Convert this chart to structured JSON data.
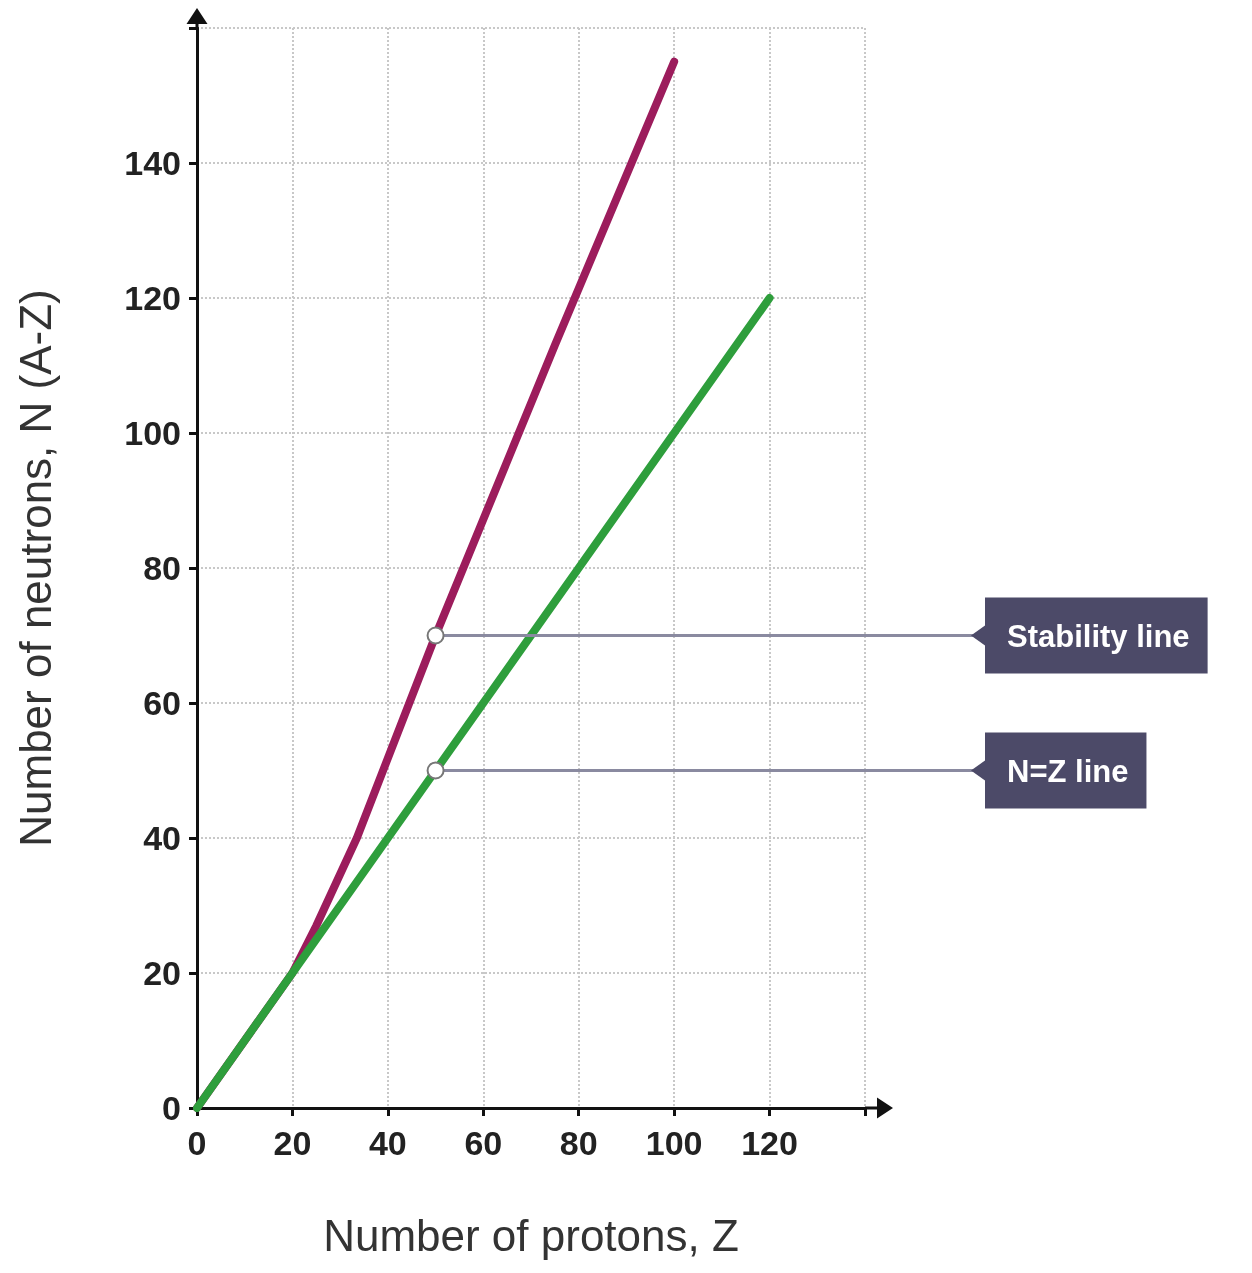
{
  "chart_data": {
    "type": "line",
    "xlabel": "Number of protons, Z",
    "ylabel": "Number of neutrons, N (A-Z)",
    "series": [
      {
        "color": "#9c1c5c",
        "x": [
          0,
          20,
          25,
          33.5,
          50,
          75,
          100
        ],
        "values": [
          0,
          20,
          27,
          40,
          70,
          113,
          155
        ]
      },
      {
        "color": "#2e9e3c",
        "x": [
          0,
          120
        ],
        "values": [
          0,
          120
        ]
      }
    ],
    "annotations": [
      {
        "text": "Stability line",
        "x": 50,
        "y": 70
      },
      {
        "text": "N=Z line",
        "x": 50,
        "y": 50
      }
    ],
    "xlim": [
      0,
      140
    ],
    "xticks": [
      0,
      20,
      40,
      60,
      80,
      100,
      120,
      {
        "value": 140,
        "label": null
      }
    ],
    "ylim": [
      0,
      160
    ],
    "yticks": [
      0,
      20,
      40,
      60,
      80,
      100,
      120,
      140,
      {
        "value": 160,
        "label": null
      }
    ],
    "grid": true,
    "marker": "none",
    "line_style": "solid"
  }
}
